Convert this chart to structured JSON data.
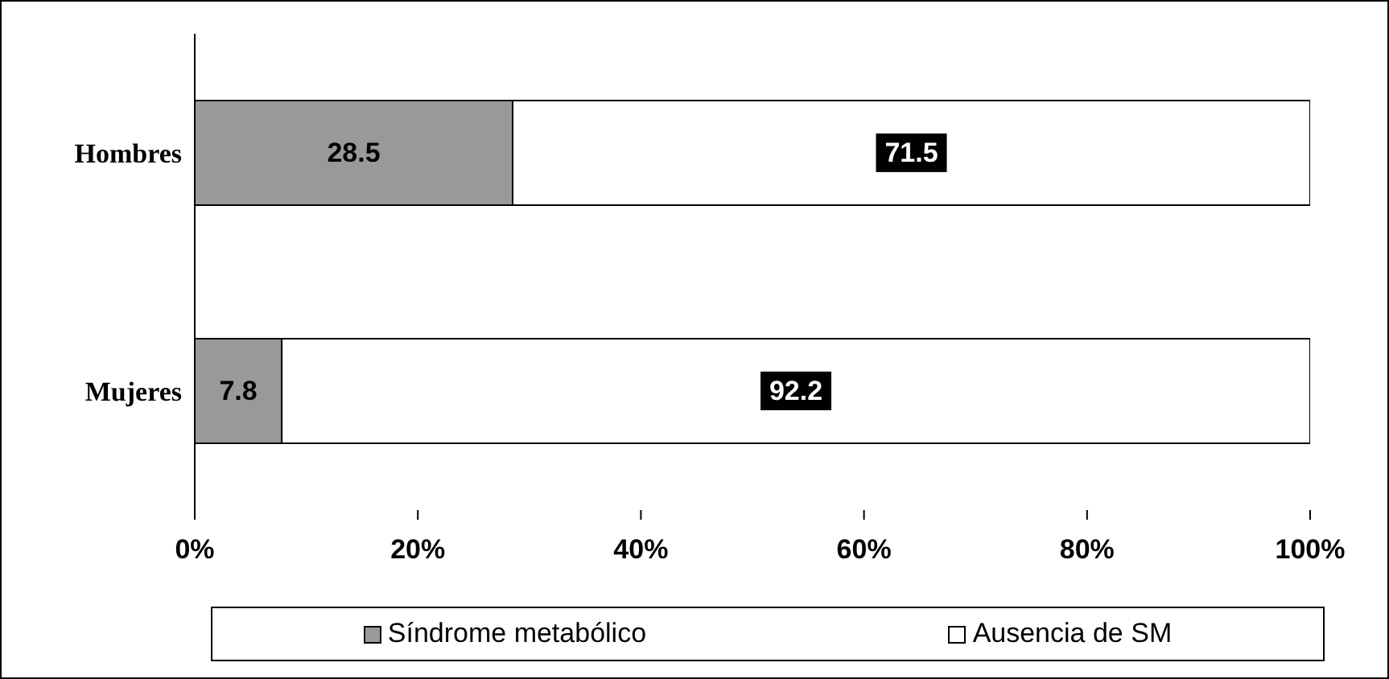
{
  "chart_data": {
    "type": "bar",
    "orientation": "horizontal",
    "stacked": true,
    "categories": [
      "Hombres",
      "Mujeres"
    ],
    "series": [
      {
        "name": "Síndrome metabólico",
        "color": "#999999",
        "values": [
          28.5,
          7.8
        ]
      },
      {
        "name": "Ausencia de SM",
        "color": "#ffffff",
        "values": [
          71.5,
          92.2
        ]
      }
    ],
    "xlim": [
      0,
      100
    ],
    "xticks": [
      {
        "value": 0,
        "label": "0%"
      },
      {
        "value": 20,
        "label": "20%"
      },
      {
        "value": 40,
        "label": "40%"
      },
      {
        "value": 60,
        "label": "60%"
      },
      {
        "value": 80,
        "label": "80%"
      },
      {
        "value": 100,
        "label": "100%"
      }
    ],
    "data_labels": true,
    "legend": "bottom",
    "grid": false
  }
}
